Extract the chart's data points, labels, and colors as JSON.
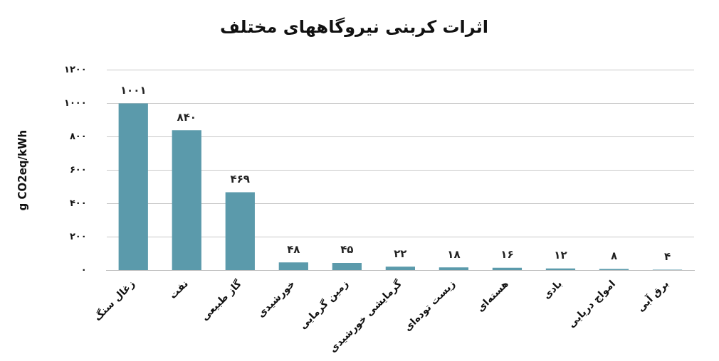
{
  "chart_data": {
    "type": "bar",
    "title": "اثرات کربنی نیروگاههای مختلف",
    "ylabel": "g CO2eq/kWh",
    "categories": [
      "زغال سنگ",
      "نفت",
      "گاز طبیعی",
      "خورشیدی",
      "زمین گرمایی",
      "گرمایشی خورشیدی",
      "زیست توده‌ای",
      "هسته‌ای",
      "بادی",
      "امواج دریایی",
      "برق آبی"
    ],
    "values": [
      1001,
      840,
      469,
      48,
      45,
      22,
      18,
      16,
      12,
      8,
      4
    ],
    "value_labels": [
      "۱۰۰۱",
      "۸۴۰",
      "۴۶۹",
      "۴۸",
      "۴۵",
      "۲۲",
      "۱۸",
      "۱۶",
      "۱۲",
      "۸",
      "۴"
    ],
    "color": "#5b9aab",
    "ylim": [
      0,
      1200
    ],
    "yticks": [
      {
        "value": 0,
        "label": "۰"
      },
      {
        "value": 200,
        "label": "۲۰۰"
      },
      {
        "value": 400,
        "label": "۴۰۰"
      },
      {
        "value": 600,
        "label": "۶۰۰"
      },
      {
        "value": 800,
        "label": "۸۰۰"
      },
      {
        "value": 1000,
        "label": "۱۰۰۰"
      },
      {
        "value": 1200,
        "label": "۱۲۰۰"
      }
    ],
    "grid": "y"
  }
}
